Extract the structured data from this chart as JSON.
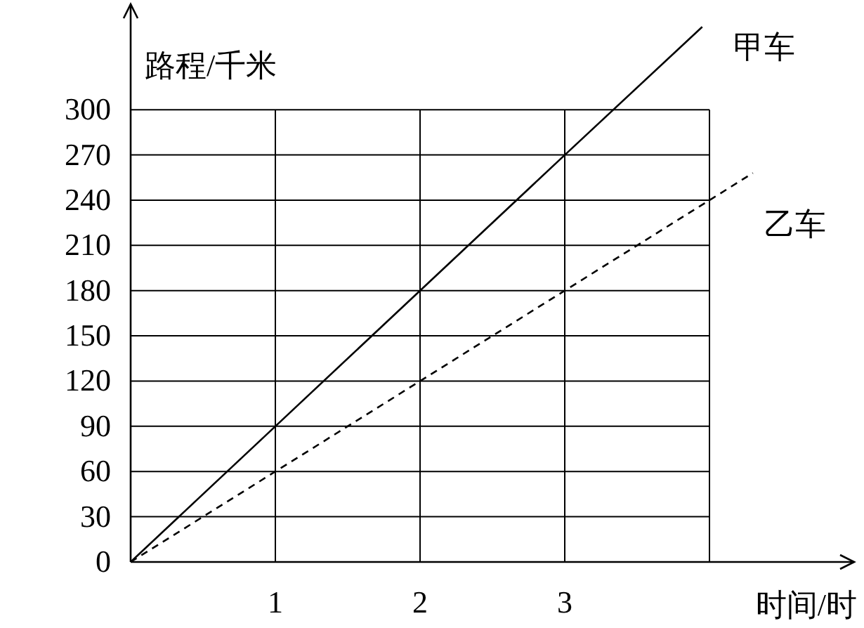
{
  "chart_data": {
    "type": "line",
    "xlabel": "时间/时",
    "ylabel": "路程/千米",
    "xlim": [
      0,
      5
    ],
    "ylim": [
      0,
      370
    ],
    "xticks": [
      1,
      2,
      3,
      {
        "value": 4,
        "label": null
      }
    ],
    "yticks": [
      0,
      30,
      60,
      90,
      120,
      150,
      180,
      210,
      240,
      270,
      300
    ],
    "grid": true,
    "legend": false,
    "series": [
      {
        "name": "甲车",
        "color": "#000000",
        "line_style": "solid",
        "x": [
          0,
          1,
          2,
          3,
          3.95
        ],
        "values": [
          0,
          90,
          180,
          270,
          355
        ]
      },
      {
        "name": "乙车",
        "color": "#000000",
        "line_style": "dashed",
        "x": [
          0,
          1,
          2,
          3,
          4,
          4.3
        ],
        "values": [
          0,
          60,
          120,
          180,
          240,
          258
        ]
      }
    ]
  }
}
